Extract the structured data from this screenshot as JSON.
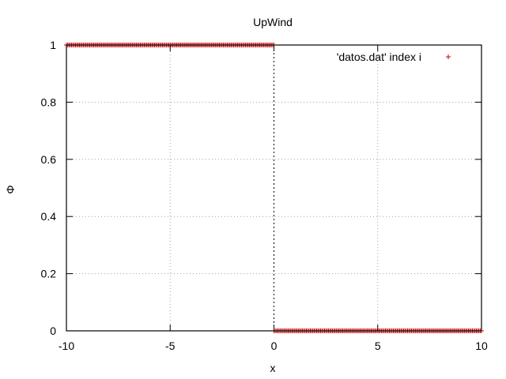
{
  "chart_data": {
    "type": "scatter",
    "title": "UpWind",
    "xlabel": "x",
    "ylabel": "Φ",
    "xlim": [
      -10,
      10
    ],
    "ylim": [
      0,
      1
    ],
    "xticks": [
      -10,
      -5,
      0,
      5,
      10
    ],
    "yticks": [
      0,
      0.2,
      0.4,
      0.6,
      0.8,
      1
    ],
    "xtick_labels": [
      "-10",
      "-5",
      "0",
      "5",
      "10"
    ],
    "ytick_labels": [
      "0",
      "0.2",
      "0.4",
      "0.6",
      "0.8",
      "1"
    ],
    "grid": true,
    "legend_position": "top-right",
    "series": [
      {
        "name": "'datos.dat' index i",
        "color": "#cc0000",
        "marker": "plus",
        "segments": [
          {
            "x_start": -10,
            "x_end": 0,
            "y": 1
          },
          {
            "x_start": 0,
            "x_end": 10,
            "y": 0
          }
        ]
      }
    ]
  }
}
